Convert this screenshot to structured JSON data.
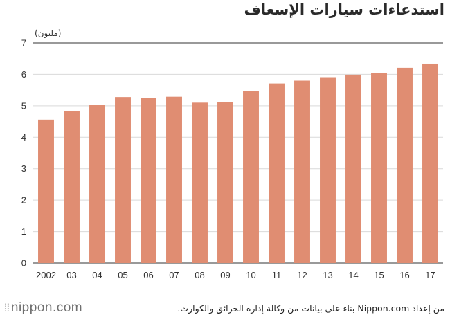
{
  "page": {
    "title": "استدعاءات سيارات الإسعاف",
    "logo_text": "nippon.com",
    "source": "من إعداد Nippon.com بناء على بيانات من وكالة إدارة الحرائق والكوارث."
  },
  "chart_data": {
    "type": "bar",
    "ylabel": "(مليون)",
    "xlabel": "",
    "ylim": [
      0,
      7
    ],
    "yticks": [
      0,
      1,
      2,
      3,
      4,
      5,
      6,
      7
    ],
    "grid": true,
    "bar_color": "#e08d72",
    "categories": [
      "2002",
      "03",
      "04",
      "05",
      "06",
      "07",
      "08",
      "09",
      "10",
      "11",
      "12",
      "13",
      "14",
      "15",
      "16",
      "17"
    ],
    "values": [
      4.56,
      4.83,
      5.03,
      5.28,
      5.24,
      5.29,
      5.1,
      5.12,
      5.46,
      5.71,
      5.8,
      5.91,
      5.99,
      6.05,
      6.21,
      6.34
    ]
  }
}
